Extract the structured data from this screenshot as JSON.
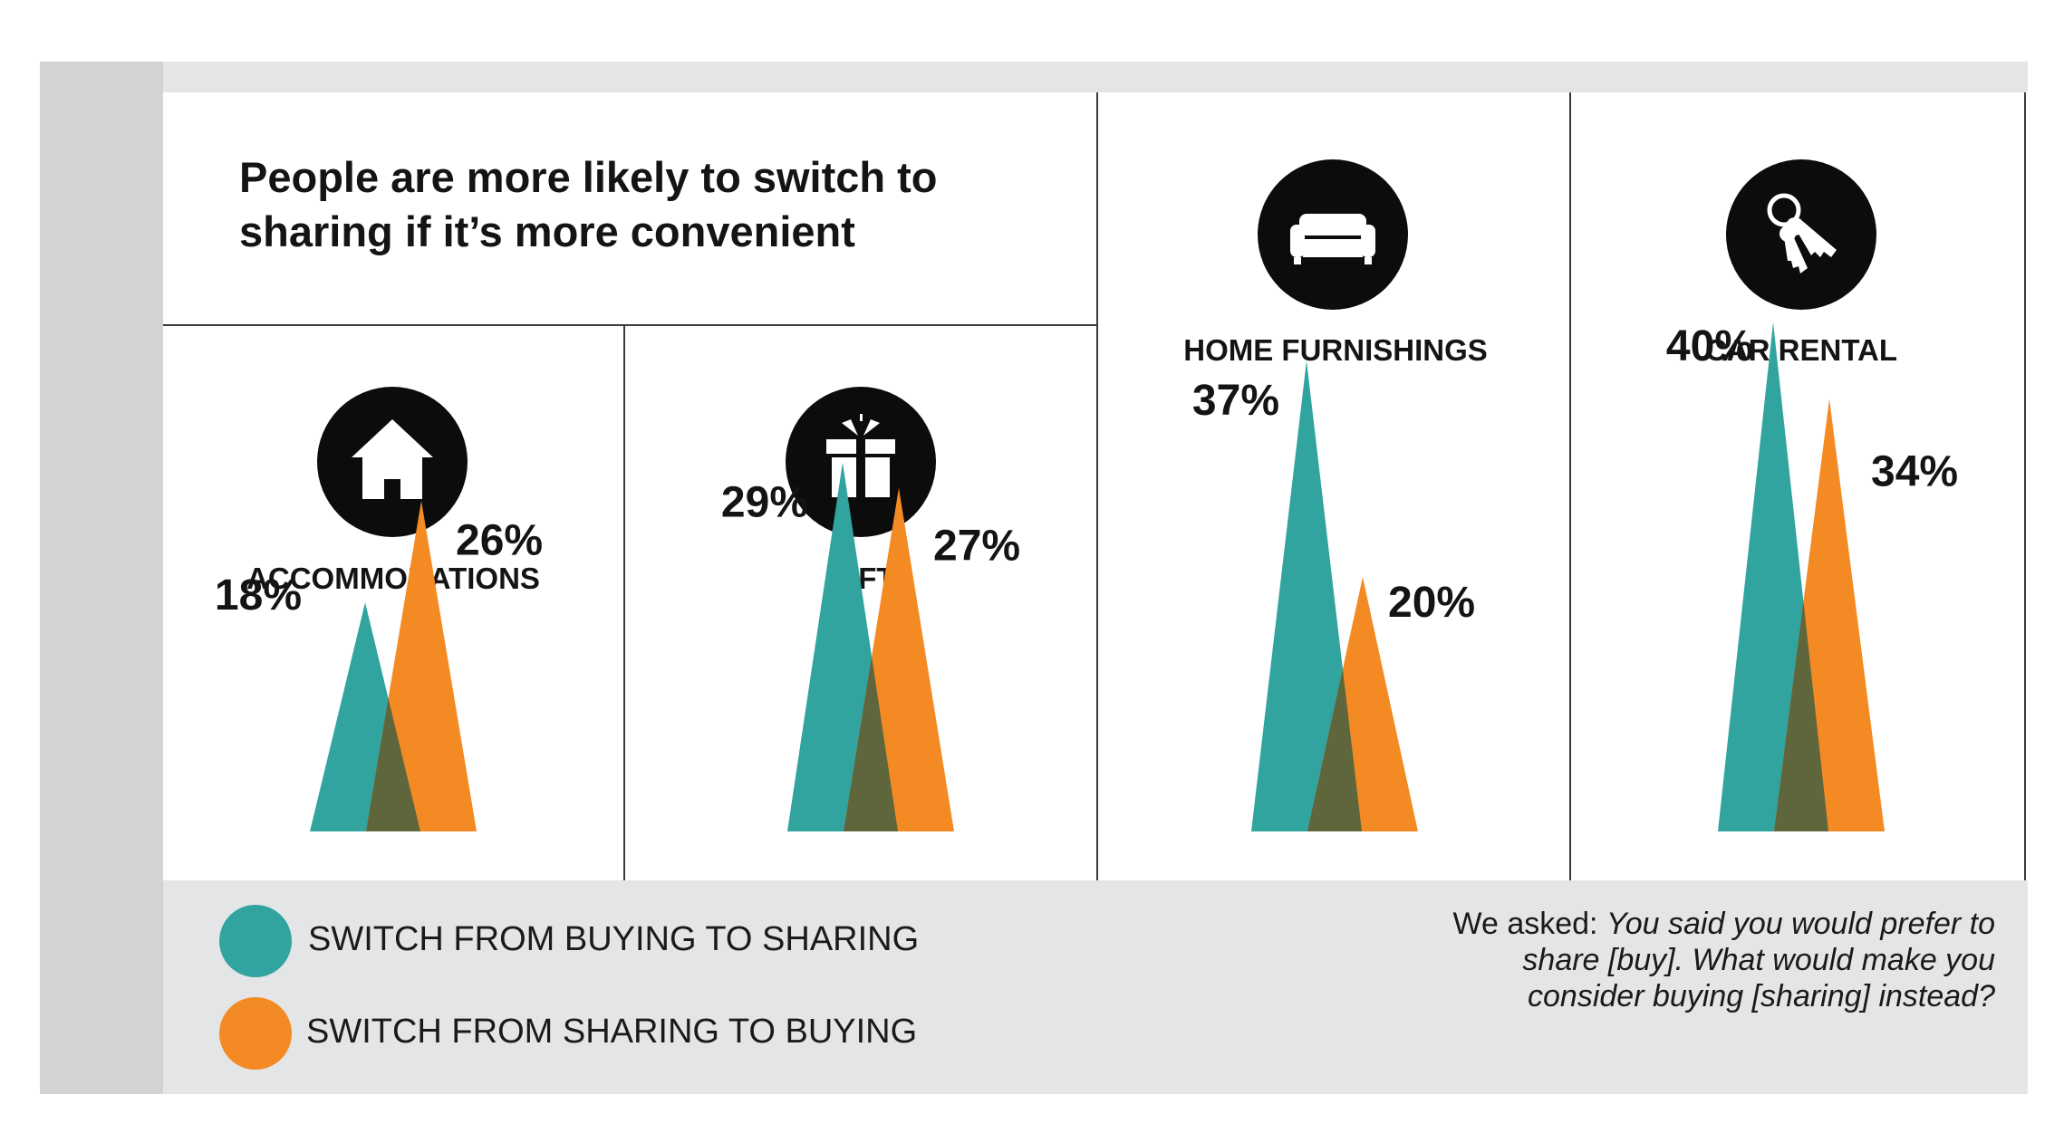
{
  "title": "People are more likely to switch to sharing if it’s more convenient",
  "categories": [
    {
      "label": "ACCOMMODATIONS",
      "icon": "house-icon"
    },
    {
      "label": "GIFT",
      "icon": "gift-icon"
    },
    {
      "label": "HOME FURNISHINGS",
      "icon": "sofa-icon"
    },
    {
      "label": "CAR RENTAL",
      "icon": "keys-icon"
    }
  ],
  "legend": [
    {
      "label": "SWITCH FROM BUYING TO SHARING",
      "color": "#31a49f"
    },
    {
      "label": "SWITCH FROM SHARING TO BUYING",
      "color": "#f48a24"
    }
  ],
  "note": {
    "prefix": "We asked: ",
    "question": "You said you would prefer to share [buy]. What would make you consider buying [sharing] instead?"
  },
  "colors": {
    "teal": "#31a49f",
    "orange": "#f48a24",
    "overlap": "#5f663c",
    "icon_bg": "#0c0c0c"
  },
  "chart_data": {
    "type": "area",
    "categories": [
      "ACCOMMODATIONS",
      "GIFT",
      "HOME FURNISHINGS",
      "CAR RENTAL"
    ],
    "series": [
      {
        "name": "SWITCH FROM BUYING TO SHARING",
        "values": [
          18,
          29,
          37,
          40
        ],
        "labels": [
          "18%",
          "29%",
          "37%",
          "40%"
        ]
      },
      {
        "name": "SWITCH FROM SHARING TO BUYING",
        "values": [
          26,
          27,
          20,
          34
        ],
        "labels": [
          "26%",
          "27%",
          "20%",
          "34%"
        ]
      }
    ],
    "unit": "%"
  }
}
